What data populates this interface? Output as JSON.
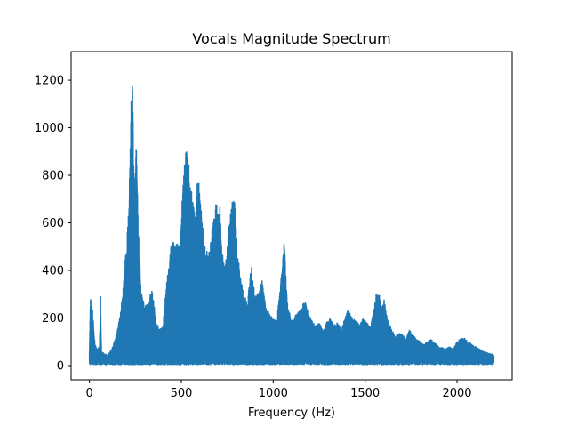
{
  "chart_data": {
    "type": "line",
    "title": "Vocals Magnitude Spectrum",
    "xlabel": "Frequency (Hz)",
    "ylabel": "",
    "xlim": [
      -100,
      2300
    ],
    "ylim": [
      -60,
      1320
    ],
    "xticks": [
      0,
      500,
      1000,
      1500,
      2000
    ],
    "xtick_labels": [
      "0",
      "500",
      "1000",
      "1500",
      "2000"
    ],
    "yticks": [
      0,
      200,
      400,
      600,
      800,
      1000,
      1200
    ],
    "ytick_labels": [
      "0",
      "200",
      "400",
      "600",
      "800",
      "1000",
      "1200"
    ],
    "grid": false,
    "legend": "none",
    "series": [
      {
        "color": "#1f77b4",
        "envelope": [
          [
            0,
            60
          ],
          [
            5,
            285
          ],
          [
            15,
            250
          ],
          [
            30,
            90
          ],
          [
            45,
            70
          ],
          [
            55,
            80
          ],
          [
            60,
            325
          ],
          [
            65,
            60
          ],
          [
            80,
            50
          ],
          [
            100,
            45
          ],
          [
            120,
            70
          ],
          [
            140,
            110
          ],
          [
            160,
            180
          ],
          [
            180,
            300
          ],
          [
            200,
            500
          ],
          [
            215,
            670
          ],
          [
            225,
            1050
          ],
          [
            232,
            1265
          ],
          [
            238,
            1000
          ],
          [
            245,
            700
          ],
          [
            255,
            930
          ],
          [
            265,
            600
          ],
          [
            280,
            320
          ],
          [
            300,
            250
          ],
          [
            320,
            260
          ],
          [
            340,
            330
          ],
          [
            360,
            200
          ],
          [
            380,
            150
          ],
          [
            400,
            170
          ],
          [
            420,
            350
          ],
          [
            450,
            545
          ],
          [
            470,
            520
          ],
          [
            490,
            500
          ],
          [
            510,
            770
          ],
          [
            525,
            925
          ],
          [
            540,
            850
          ],
          [
            560,
            700
          ],
          [
            580,
            650
          ],
          [
            590,
            835
          ],
          [
            600,
            720
          ],
          [
            615,
            600
          ],
          [
            630,
            500
          ],
          [
            650,
            470
          ],
          [
            670,
            600
          ],
          [
            690,
            690
          ],
          [
            700,
            650
          ],
          [
            710,
            690
          ],
          [
            720,
            480
          ],
          [
            740,
            420
          ],
          [
            760,
            600
          ],
          [
            775,
            690
          ],
          [
            790,
            690
          ],
          [
            805,
            500
          ],
          [
            820,
            380
          ],
          [
            840,
            300
          ],
          [
            860,
            260
          ],
          [
            880,
            430
          ],
          [
            900,
            300
          ],
          [
            920,
            300
          ],
          [
            940,
            360
          ],
          [
            960,
            240
          ],
          [
            980,
            220
          ],
          [
            1000,
            200
          ],
          [
            1020,
            200
          ],
          [
            1040,
            350
          ],
          [
            1050,
            440
          ],
          [
            1060,
            525
          ],
          [
            1070,
            360
          ],
          [
            1080,
            250
          ],
          [
            1100,
            190
          ],
          [
            1120,
            210
          ],
          [
            1140,
            230
          ],
          [
            1160,
            250
          ],
          [
            1170,
            290
          ],
          [
            1190,
            220
          ],
          [
            1210,
            190
          ],
          [
            1230,
            170
          ],
          [
            1250,
            180
          ],
          [
            1270,
            150
          ],
          [
            1290,
            180
          ],
          [
            1310,
            200
          ],
          [
            1330,
            170
          ],
          [
            1350,
            180
          ],
          [
            1370,
            160
          ],
          [
            1390,
            200
          ],
          [
            1410,
            240
          ],
          [
            1430,
            200
          ],
          [
            1450,
            190
          ],
          [
            1470,
            170
          ],
          [
            1490,
            200
          ],
          [
            1510,
            180
          ],
          [
            1530,
            160
          ],
          [
            1550,
            260
          ],
          [
            1560,
            300
          ],
          [
            1575,
            305
          ],
          [
            1590,
            240
          ],
          [
            1605,
            280
          ],
          [
            1620,
            200
          ],
          [
            1640,
            160
          ],
          [
            1660,
            130
          ],
          [
            1680,
            130
          ],
          [
            1700,
            140
          ],
          [
            1720,
            110
          ],
          [
            1740,
            150
          ],
          [
            1760,
            130
          ],
          [
            1780,
            110
          ],
          [
            1800,
            100
          ],
          [
            1820,
            90
          ],
          [
            1840,
            100
          ],
          [
            1860,
            110
          ],
          [
            1880,
            95
          ],
          [
            1900,
            80
          ],
          [
            1920,
            75
          ],
          [
            1940,
            70
          ],
          [
            1960,
            80
          ],
          [
            1980,
            70
          ],
          [
            2000,
            100
          ],
          [
            2020,
            115
          ],
          [
            2040,
            115
          ],
          [
            2060,
            100
          ],
          [
            2080,
            90
          ],
          [
            2100,
            80
          ],
          [
            2120,
            70
          ],
          [
            2140,
            60
          ],
          [
            2160,
            55
          ],
          [
            2180,
            50
          ],
          [
            2200,
            45
          ]
        ]
      }
    ]
  }
}
